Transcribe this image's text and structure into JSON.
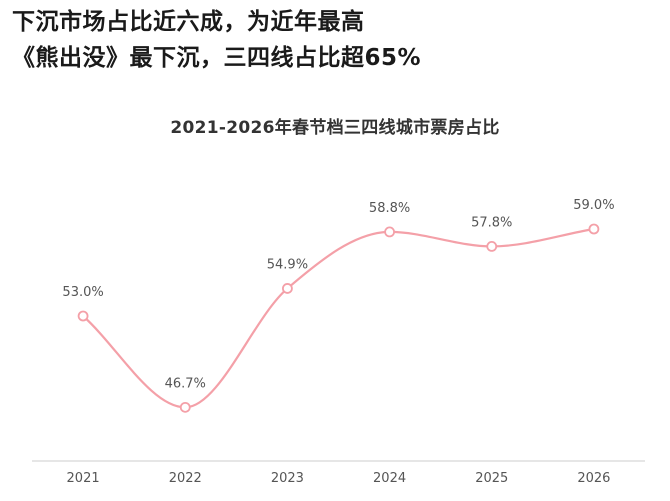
{
  "headline": {
    "line1": "下沉市场占比近六成，为近年最高",
    "line2": "《熊出没》最下沉，三四线占比超65%"
  },
  "chart_data": {
    "type": "line",
    "title": "2021-2026年春节档三四线城市票房占比",
    "categories": [
      "2021",
      "2022",
      "2023",
      "2024",
      "2025",
      "2026"
    ],
    "values": [
      53.0,
      46.7,
      54.9,
      58.8,
      57.8,
      59.0
    ],
    "data_labels": [
      "53.0%",
      "46.7%",
      "54.9%",
      "58.8%",
      "57.8%",
      "59.0%"
    ],
    "ylim": [
      43,
      63
    ],
    "grid": false,
    "line_color": "#f4a0a8",
    "marker_fill": "#ffffff",
    "axis_color": "#cccccc"
  }
}
